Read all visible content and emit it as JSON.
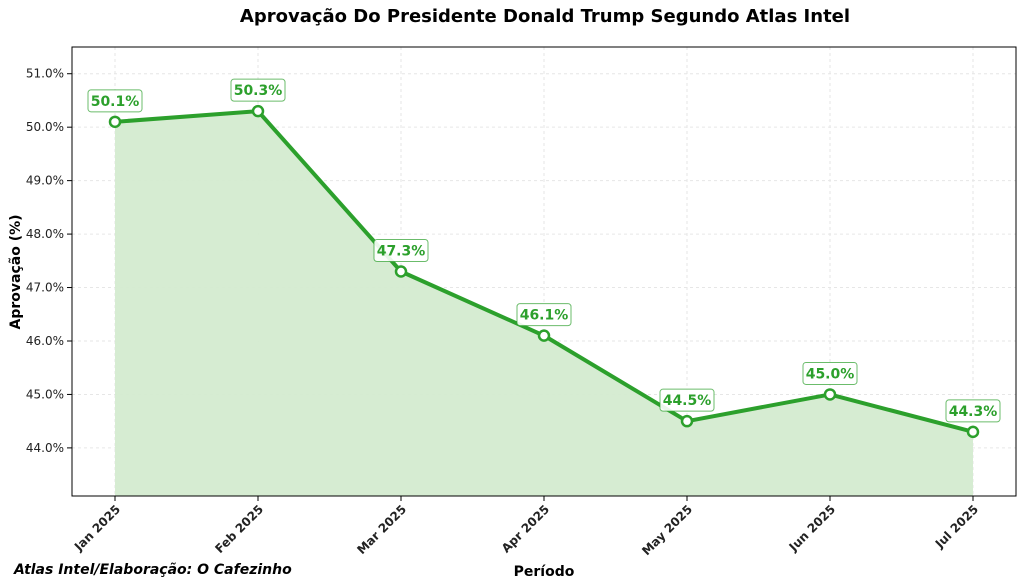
{
  "chart_data": {
    "type": "area",
    "title": "Aprovação Do Presidente Donald Trump Segundo Atlas Intel",
    "xlabel": "Período",
    "ylabel": "Aprovação (%)",
    "categories": [
      "Jan 2025",
      "Feb 2025",
      "Mar 2025",
      "Apr 2025",
      "May 2025",
      "Jun 2025",
      "Jul 2025"
    ],
    "values": [
      50.1,
      50.3,
      47.3,
      46.1,
      44.5,
      45.0,
      44.3
    ],
    "data_labels": [
      "50.1%",
      "50.3%",
      "47.3%",
      "46.1%",
      "44.5%",
      "45.0%",
      "44.3%"
    ],
    "yticks": [
      44.0,
      45.0,
      46.0,
      47.0,
      48.0,
      49.0,
      50.0,
      51.0
    ],
    "ytick_labels": [
      "44.0%",
      "45.0%",
      "46.0%",
      "47.0%",
      "48.0%",
      "49.0%",
      "50.0%",
      "51.0%"
    ],
    "ylim": [
      43.1,
      51.5
    ],
    "grid": true,
    "colors": {
      "line": "#2ca02c",
      "fill": "#d4ebd0"
    }
  },
  "source": "Atlas Intel/Elaboração: O Cafezinho"
}
